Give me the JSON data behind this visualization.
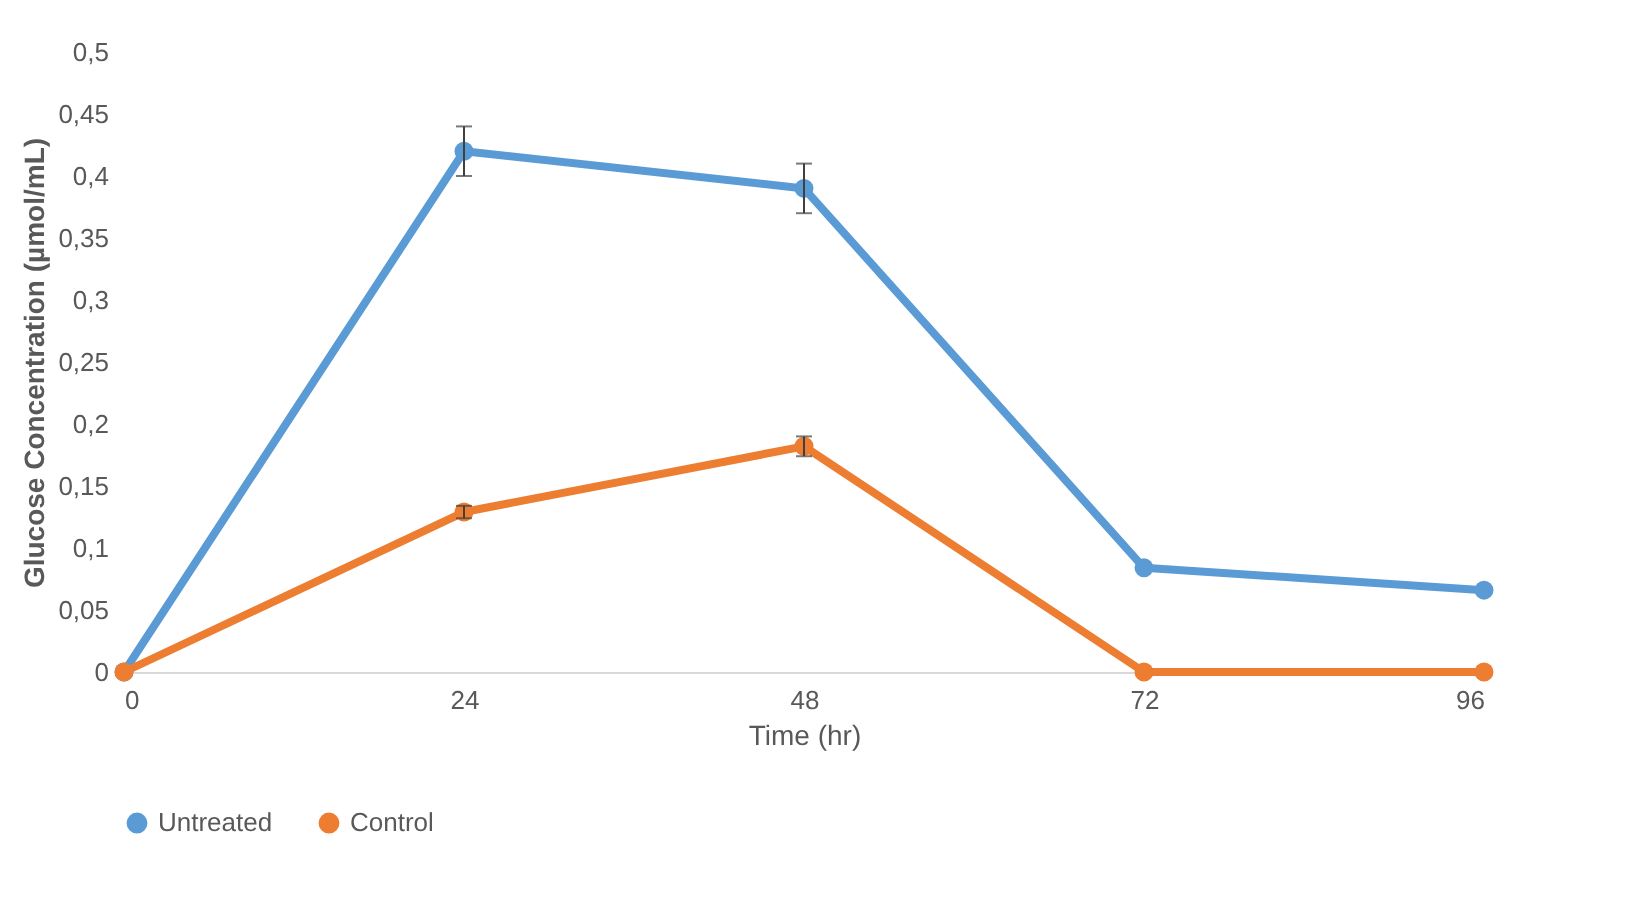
{
  "chart_data": {
    "type": "line",
    "xlabel": "Time (hr)",
    "ylabel": "Glucose Concentration (µmol/mL)",
    "x": [
      0,
      24,
      48,
      72,
      96
    ],
    "series": [
      {
        "name": "Untreated",
        "color": "#5b9bd5",
        "values": [
          0,
          0.42,
          0.39,
          0.084,
          0.066
        ],
        "errors": [
          null,
          0.02,
          0.02,
          null,
          null
        ]
      },
      {
        "name": "Control",
        "color": "#ed7d31",
        "values": [
          0,
          0.129,
          0.182,
          0,
          0
        ],
        "errors": [
          null,
          0.005,
          0.008,
          null,
          null
        ]
      }
    ],
    "xlim": [
      0,
      96
    ],
    "xticks": [
      0,
      24,
      48,
      72,
      96
    ],
    "ylim": [
      0,
      0.5
    ],
    "yticks": [
      0,
      {
        "value": 0.05,
        "label": "0,05"
      },
      {
        "value": 0.1,
        "label": "0,1"
      },
      {
        "value": 0.15,
        "label": "0,15"
      },
      {
        "value": 0.2,
        "label": "0,2"
      },
      {
        "value": 0.25,
        "label": "0,25"
      },
      {
        "value": 0.3,
        "label": "0,3"
      },
      {
        "value": 0.35,
        "label": "0,35"
      },
      {
        "value": 0.4,
        "label": "0,4"
      },
      {
        "value": 0.45,
        "label": "0,45"
      },
      {
        "value": 0.5,
        "label": "0,5"
      }
    ],
    "grid": false,
    "legend": "bottom",
    "marker": "circle",
    "line_style": "solid"
  }
}
